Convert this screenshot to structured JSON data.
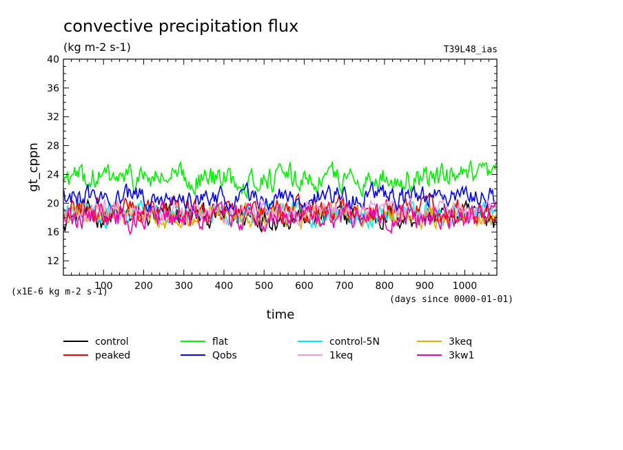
{
  "chart_data": {
    "type": "line",
    "title": "convective precipitation flux",
    "units": "(kg m-2 s-1)",
    "run_label": "T39L48_ias",
    "xlabel": "time",
    "xlabel_note": "(days since 0000-01-01)",
    "ylabel": "gt_cppn",
    "scale_note": "(x1E-6 kg m-2 s-1)",
    "xlim": [
      0,
      1080
    ],
    "ylim": [
      10,
      40
    ],
    "x_ticks": [
      100,
      200,
      300,
      400,
      500,
      600,
      700,
      800,
      900,
      1000
    ],
    "y_ticks": [
      12,
      16,
      20,
      24,
      28,
      32,
      36,
      40
    ],
    "grid": false,
    "legend_position": "bottom",
    "series": [
      {
        "name": "control",
        "color": "#000000",
        "mean": 18.2,
        "amplitude": 1.4
      },
      {
        "name": "flat",
        "color": "#00ee00",
        "mean": 23.4,
        "amplitude": 1.5
      },
      {
        "name": "control-5N",
        "color": "#00eeee",
        "mean": 18.6,
        "amplitude": 1.3
      },
      {
        "name": "3keq",
        "color": "#e8a800",
        "mean": 18.3,
        "amplitude": 1.3
      },
      {
        "name": "peaked",
        "color": "#ee0000",
        "mean": 19.0,
        "amplitude": 1.3
      },
      {
        "name": "Qobs",
        "color": "#0000ee",
        "mean": 20.8,
        "amplitude": 1.2
      },
      {
        "name": "1keq",
        "color": "#e8a0e0",
        "mean": 18.8,
        "amplitude": 1.2
      },
      {
        "name": "3kw1",
        "color": "#ee00aa",
        "mean": 18.0,
        "amplitude": 1.4
      }
    ]
  }
}
